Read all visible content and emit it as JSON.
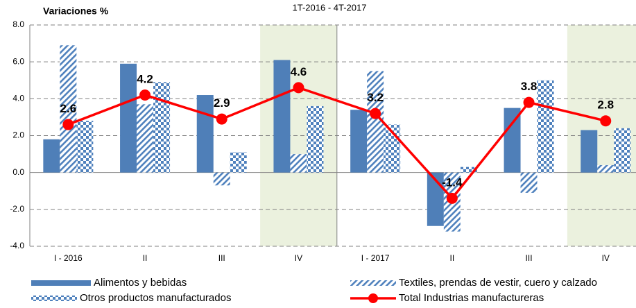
{
  "chart_data": {
    "type": "bar",
    "title": "Variaciones %",
    "subtitle": "1T-2016 - 4T-2017",
    "categories": [
      "I - 2016",
      "II",
      "III",
      "IV",
      "I - 2017",
      "II",
      "III",
      "IV"
    ],
    "series": [
      {
        "name": "Alimentos y bebidas",
        "color": "#4f7fb8",
        "values": [
          1.8,
          5.9,
          4.2,
          6.1,
          3.4,
          -2.9,
          3.5,
          2.3
        ]
      },
      {
        "name": "Textiles, prendas de vestir, cuero y calzado",
        "color": "#4f81bd",
        "values": [
          6.9,
          3.7,
          -0.7,
          1.0,
          5.5,
          -3.2,
          -1.1,
          0.4
        ]
      },
      {
        "name": "Otros productos manufacturados",
        "color": "#4f81bd",
        "values": [
          2.8,
          4.9,
          1.1,
          3.6,
          2.6,
          0.3,
          5.0,
          2.4
        ]
      },
      {
        "name": "Total Industrias manufactureras",
        "type": "line",
        "color": "#ff0000",
        "values": [
          2.6,
          4.2,
          2.9,
          4.6,
          3.2,
          -1.4,
          3.8,
          2.8
        ]
      }
    ],
    "ylim": [
      -4,
      8
    ],
    "yticks": [
      {
        "value": -4,
        "label": "-4.0"
      },
      {
        "value": -2,
        "label": "-2.0"
      },
      {
        "value": 0,
        "label": "0.0"
      },
      {
        "value": 2,
        "label": "2.0"
      },
      {
        "value": 4,
        "label": "4.0"
      },
      {
        "value": 6,
        "label": "6.0"
      },
      {
        "value": 8,
        "label": "8.0"
      }
    ],
    "grid": true
  }
}
